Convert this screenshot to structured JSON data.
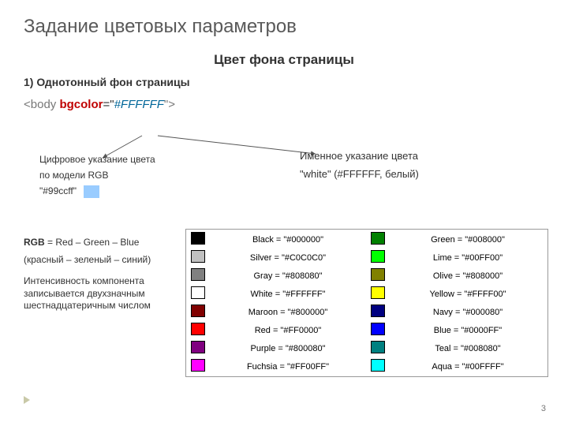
{
  "title": "Задание цветовых параметров",
  "subtitle": "Цвет фона страницы",
  "section": "1) Однотонный фон страницы",
  "code": {
    "open": "<body",
    "attr": "bgcolor",
    "eq": "=\"",
    "value": "#FFFFFF",
    "close": "\">"
  },
  "left": {
    "l1": "Цифровое указание цвета",
    "l2": "по модели RGB",
    "sample_label": "\"#99ccff\"",
    "sample_color": "#99ccff"
  },
  "right": {
    "l1": "Именное указание цвета",
    "l2": "\"white\" (#FFFFFF, белый)"
  },
  "rgb": {
    "t1a": "RGB",
    "t1b": " = Red – Green – Blue",
    "t2": "(красный – зеленый – синий)",
    "t3": "Интенсивность компонента записывается двухзначным шестнадцатеричным числом"
  },
  "colors": [
    {
      "swatch": "#000000",
      "label": "Black = \"#000000\"",
      "swatch2": "#008000",
      "label2": "Green = \"#008000\""
    },
    {
      "swatch": "#C0C0C0",
      "label": "Silver = \"#C0C0C0\"",
      "swatch2": "#00FF00",
      "label2": "Lime = \"#00FF00\""
    },
    {
      "swatch": "#808080",
      "label": "Gray = \"#808080\"",
      "swatch2": "#808000",
      "label2": "Olive = \"#808000\""
    },
    {
      "swatch": "#FFFFFF",
      "label": "White = \"#FFFFFF\"",
      "swatch2": "#FFFF00",
      "label2": "Yellow = \"#FFFF00\""
    },
    {
      "swatch": "#800000",
      "label": "Maroon = \"#800000\"",
      "swatch2": "#000080",
      "label2": "Navy = \"#000080\""
    },
    {
      "swatch": "#FF0000",
      "label": "Red = \"#FF0000\"",
      "swatch2": "#0000FF",
      "label2": "Blue = \"#0000FF\""
    },
    {
      "swatch": "#800080",
      "label": "Purple = \"#800080\"",
      "swatch2": "#008080",
      "label2": "Teal = \"#008080\""
    },
    {
      "swatch": "#FF00FF",
      "label": "Fuchsia = \"#FF00FF\"",
      "swatch2": "#00FFFF",
      "label2": "Aqua = \"#00FFFF\""
    }
  ],
  "page": "3"
}
